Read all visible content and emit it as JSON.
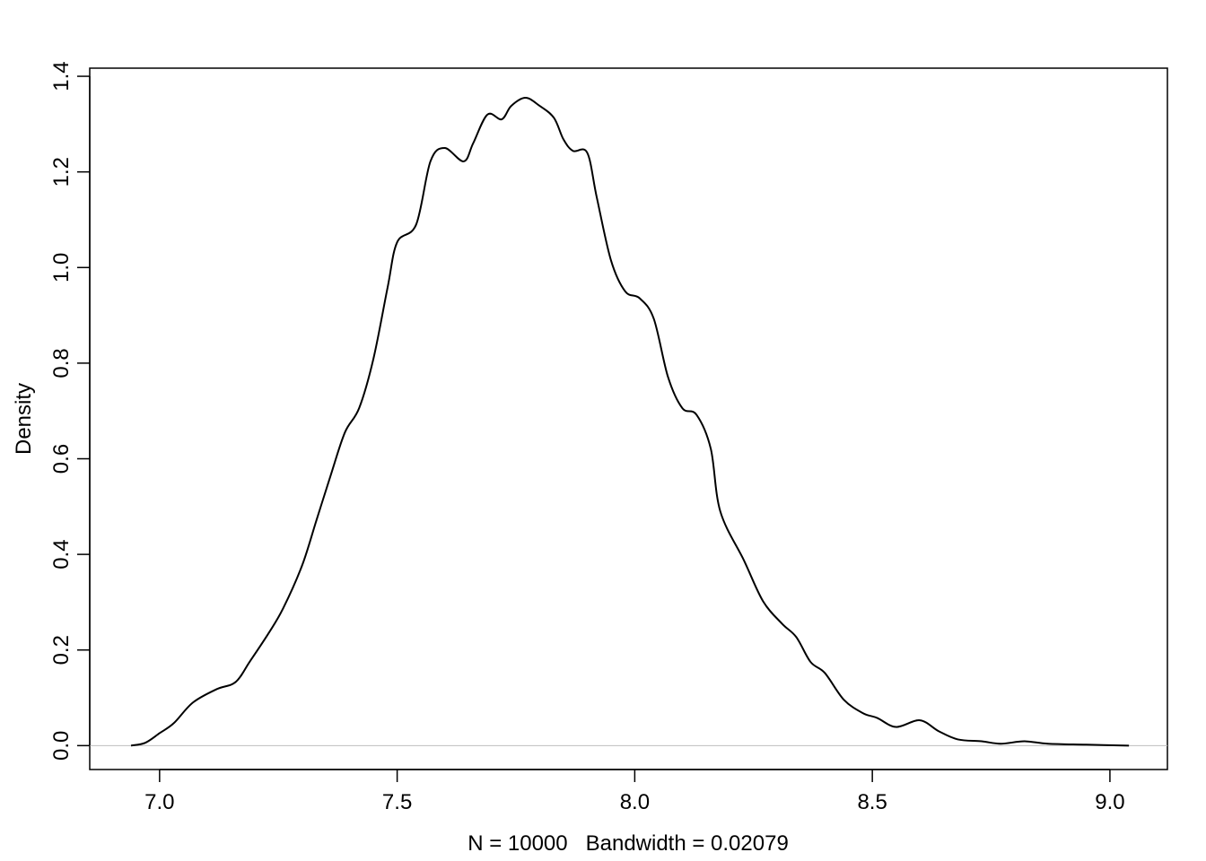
{
  "chart_data": {
    "type": "line",
    "title": "",
    "xlabel": "N = 10000   Bandwidth = 0.02079",
    "ylabel": "Density",
    "xlim": [
      6.853,
      9.121
    ],
    "ylim": [
      -0.05,
      1.417
    ],
    "x_ticks": [
      7.0,
      7.5,
      8.0,
      8.5,
      9.0
    ],
    "x_tick_labels": [
      "7.0",
      "7.5",
      "8.0",
      "8.5",
      "9.0"
    ],
    "y_ticks": [
      0.0,
      0.2,
      0.4,
      0.6,
      0.8,
      1.0,
      1.2,
      1.4
    ],
    "y_tick_labels": [
      "0.0",
      "0.2",
      "0.4",
      "0.6",
      "0.8",
      "1.0",
      "1.2",
      "1.4"
    ],
    "grid": false,
    "zero_line": true,
    "line_color": "#000000",
    "zero_line_color": "#bebebe",
    "series": [
      {
        "x": [
          6.94,
          6.97,
          7.0,
          7.03,
          7.07,
          7.12,
          7.16,
          7.19,
          7.23,
          7.26,
          7.3,
          7.33,
          7.36,
          7.39,
          7.42,
          7.45,
          7.48,
          7.5,
          7.54,
          7.57,
          7.6,
          7.64,
          7.66,
          7.69,
          7.72,
          7.74,
          7.77,
          7.8,
          7.83,
          7.85,
          7.87,
          7.9,
          7.92,
          7.95,
          7.98,
          8.01,
          8.04,
          8.07,
          8.1,
          8.13,
          8.16,
          8.18,
          8.23,
          8.27,
          8.31,
          8.34,
          8.37,
          8.4,
          8.44,
          8.48,
          8.51,
          8.55,
          8.6,
          8.64,
          8.68,
          8.73,
          8.77,
          8.82,
          8.87,
          8.95,
          9.04
        ],
        "y": [
          0.0,
          0.006,
          0.026,
          0.047,
          0.09,
          0.118,
          0.133,
          0.176,
          0.236,
          0.287,
          0.377,
          0.471,
          0.565,
          0.655,
          0.706,
          0.809,
          0.959,
          1.053,
          1.09,
          1.222,
          1.25,
          1.222,
          1.26,
          1.32,
          1.31,
          1.338,
          1.355,
          1.338,
          1.313,
          1.268,
          1.244,
          1.24,
          1.147,
          1.015,
          0.95,
          0.936,
          0.893,
          0.771,
          0.706,
          0.692,
          0.621,
          0.49,
          0.387,
          0.302,
          0.255,
          0.227,
          0.175,
          0.152,
          0.096,
          0.068,
          0.058,
          0.039,
          0.053,
          0.03,
          0.013,
          0.009,
          0.004,
          0.009,
          0.004,
          0.002,
          0.0
        ]
      }
    ]
  }
}
